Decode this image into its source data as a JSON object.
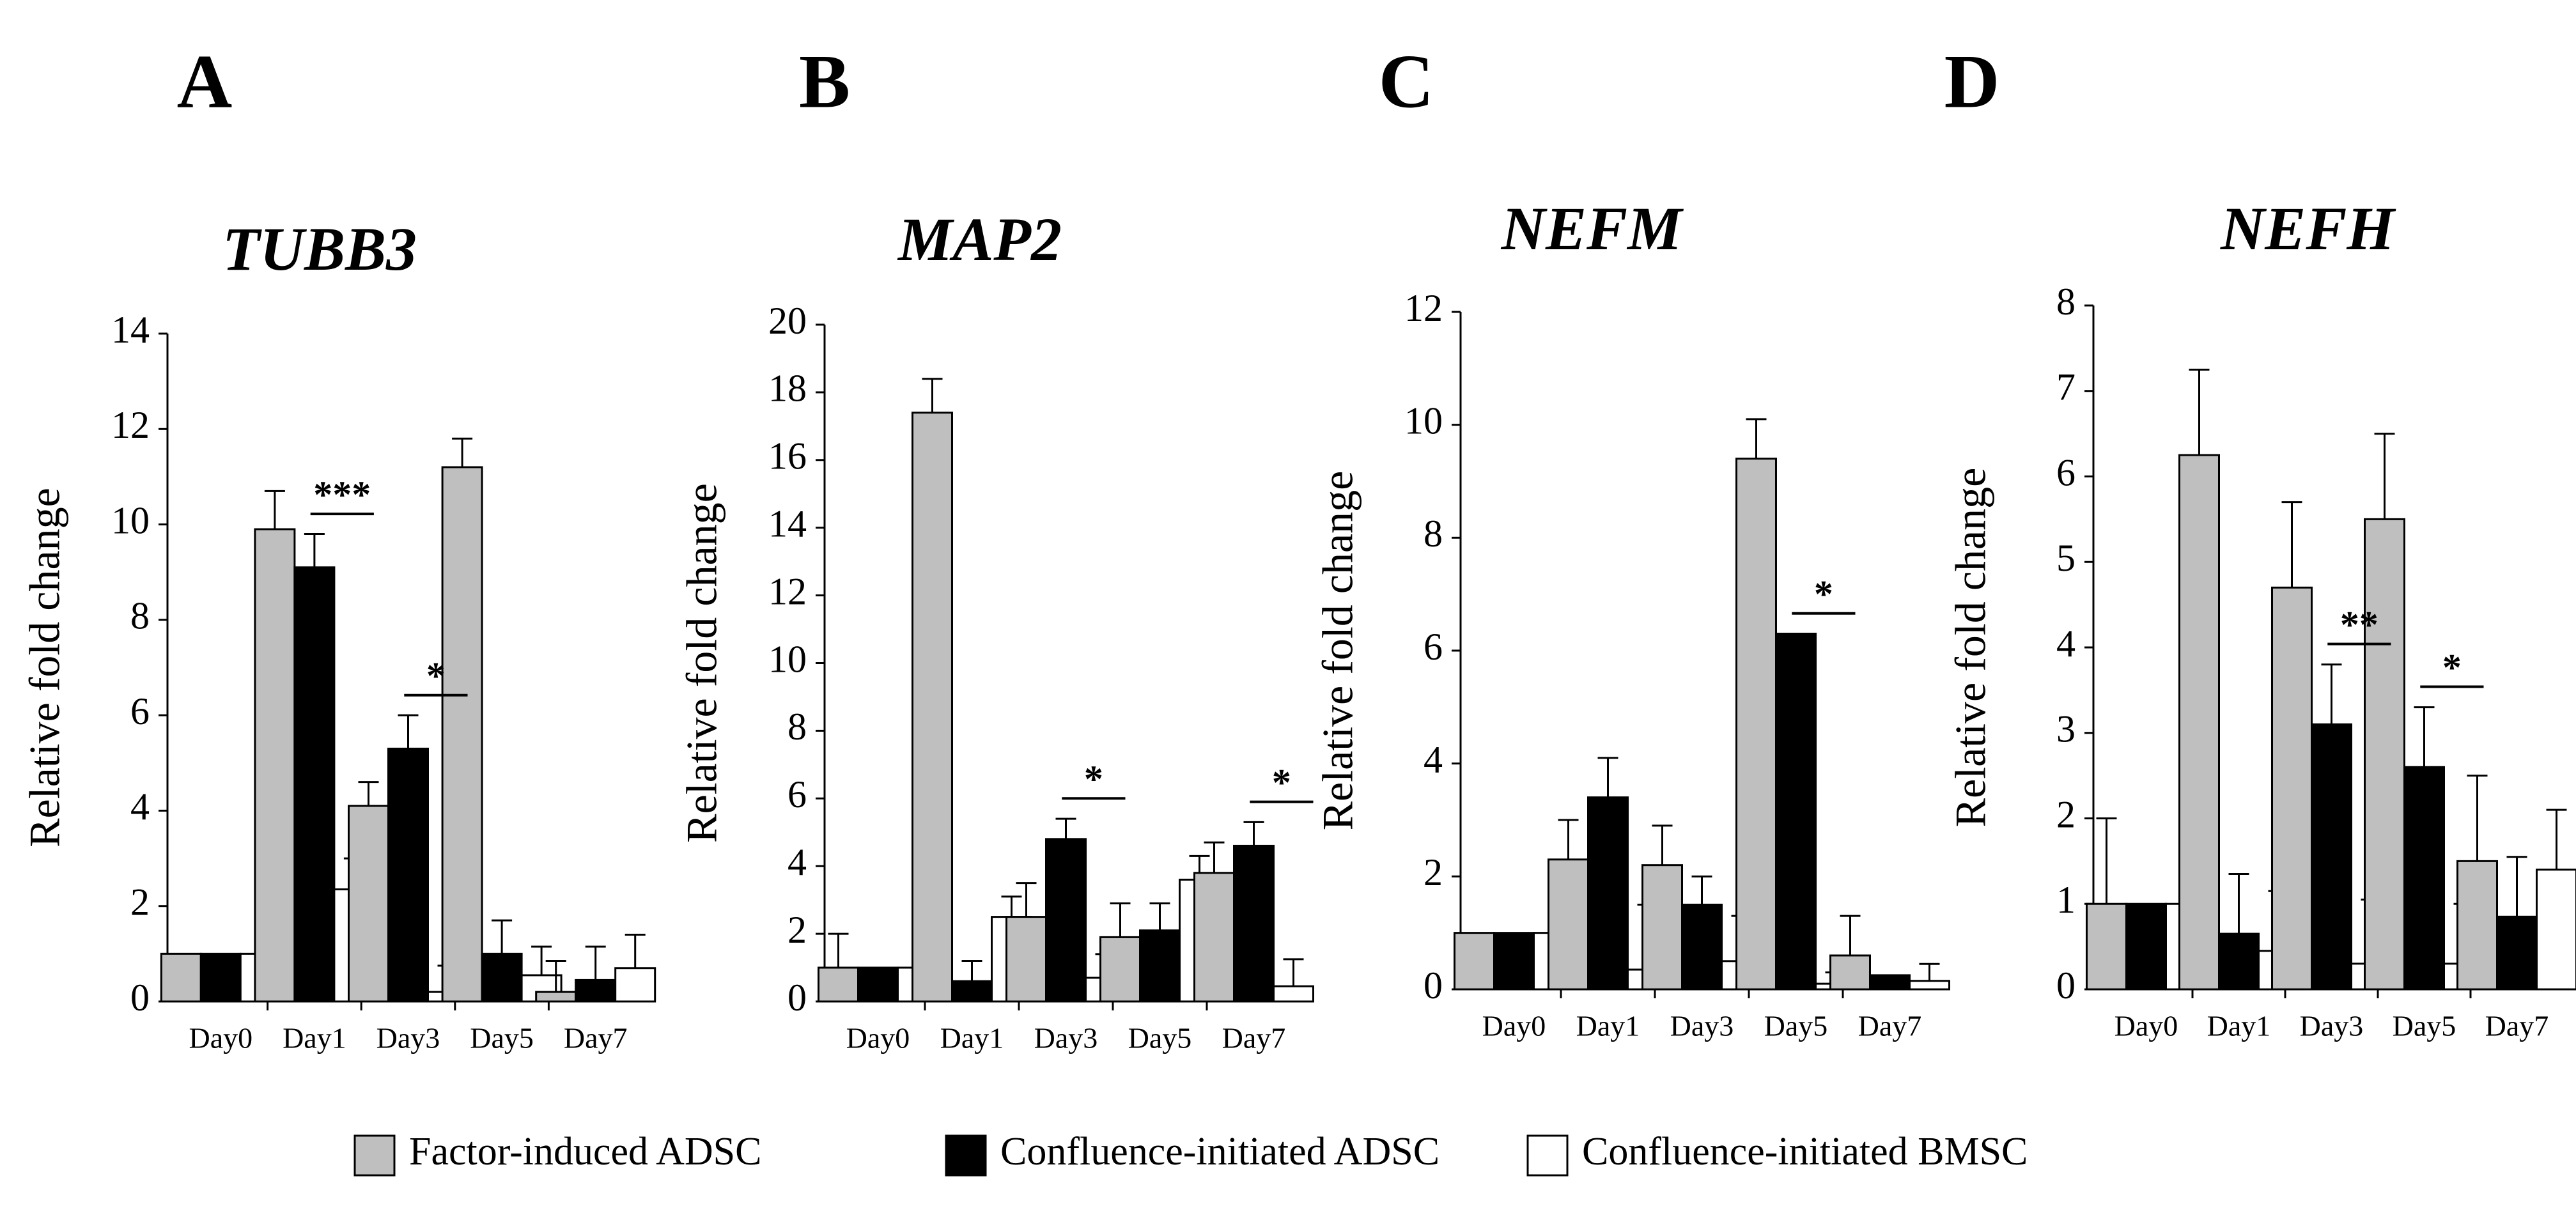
{
  "legend": {
    "items": [
      {
        "label": "Factor-induced ADSC",
        "color": "#bfbfbf"
      },
      {
        "label": "Confluence-initiated ADSC",
        "color": "#000000"
      },
      {
        "label": "Confluence-initiated BMSC",
        "color": "#ffffff"
      }
    ]
  },
  "chart_data": [
    {
      "type": "bar",
      "panel": "A",
      "title": "TUBB3",
      "ylabel": "Relative fold change",
      "xlabel": "",
      "ylim": [
        0,
        14
      ],
      "yticks": [
        0,
        2,
        4,
        6,
        8,
        10,
        12,
        14
      ],
      "categories": [
        "Day0",
        "Day1",
        "Day3",
        "Day5",
        "Day7"
      ],
      "series": [
        {
          "name": "Factor-induced ADSC",
          "values": [
            1.0,
            9.9,
            4.1,
            11.2,
            0.2
          ],
          "errors": [
            0.0,
            0.8,
            0.5,
            0.6,
            0.65
          ]
        },
        {
          "name": "Confluence-initiated ADSC",
          "values": [
            1.0,
            9.1,
            5.3,
            1.0,
            0.45
          ],
          "errors": [
            0.0,
            0.7,
            0.7,
            0.7,
            0.7
          ]
        },
        {
          "name": "Confluence-initiated BMSC",
          "values": [
            1.0,
            2.35,
            0.2,
            0.55,
            0.7
          ],
          "errors": [
            0.0,
            0.65,
            0.55,
            0.6,
            0.7
          ]
        }
      ],
      "annotations": [
        {
          "text": "***",
          "category": "Day1"
        },
        {
          "text": "*",
          "category": "Day3"
        }
      ]
    },
    {
      "type": "bar",
      "panel": "B",
      "title": "MAP2",
      "ylabel": "Relative fold change",
      "xlabel": "",
      "ylim": [
        0,
        20
      ],
      "yticks": [
        0,
        2,
        4,
        6,
        8,
        10,
        12,
        14,
        16,
        18,
        20
      ],
      "categories": [
        "Day0",
        "Day1",
        "Day3",
        "Day5",
        "Day7"
      ],
      "series": [
        {
          "name": "Factor-induced ADSC",
          "values": [
            1.0,
            17.4,
            2.5,
            1.9,
            3.8
          ],
          "errors": [
            1.0,
            1.0,
            1.0,
            1.0,
            0.9
          ]
        },
        {
          "name": "Confluence-initiated ADSC",
          "values": [
            1.0,
            0.6,
            4.8,
            2.1,
            4.6
          ],
          "errors": [
            0.0,
            0.6,
            0.6,
            0.8,
            0.7
          ]
        },
        {
          "name": "Confluence-initiated BMSC",
          "values": [
            1.0,
            2.5,
            0.7,
            3.6,
            0.45
          ],
          "errors": [
            0.0,
            0.6,
            0.7,
            0.7,
            0.8
          ]
        }
      ],
      "annotations": [
        {
          "text": "*",
          "category": "Day3"
        },
        {
          "text": "*",
          "category": "Day7"
        }
      ]
    },
    {
      "type": "bar",
      "panel": "C",
      "title": "NEFM",
      "ylabel": "Relative fold change",
      "xlabel": "",
      "ylim": [
        0,
        12
      ],
      "yticks": [
        0,
        2,
        4,
        6,
        8,
        10,
        12
      ],
      "categories": [
        "Day0",
        "Day1",
        "Day3",
        "Day5",
        "Day7"
      ],
      "series": [
        {
          "name": "Factor-induced ADSC",
          "values": [
            1.0,
            2.3,
            2.2,
            9.4,
            0.6
          ],
          "errors": [
            0.0,
            0.7,
            0.7,
            0.7,
            0.7
          ]
        },
        {
          "name": "Confluence-initiated ADSC",
          "values": [
            1.0,
            3.4,
            1.5,
            6.3,
            0.25
          ],
          "errors": [
            0.0,
            0.7,
            0.5,
            0.0,
            0.0
          ]
        },
        {
          "name": "Confluence-initiated BMSC",
          "values": [
            1.0,
            0.35,
            0.5,
            0.1,
            0.15
          ],
          "errors": [
            0.0,
            1.15,
            0.8,
            0.2,
            0.3
          ]
        }
      ],
      "annotations": [
        {
          "text": "*",
          "category": "Day5"
        }
      ]
    },
    {
      "type": "bar",
      "panel": "D",
      "title": "NEFH",
      "ylabel": "Relative fold change",
      "xlabel": "",
      "ylim": [
        0,
        8
      ],
      "yticks": [
        0,
        1,
        2,
        3,
        4,
        5,
        6,
        7,
        8
      ],
      "categories": [
        "Day0",
        "Day1",
        "Day3",
        "Day5",
        "Day7"
      ],
      "series": [
        {
          "name": "Factor-induced ADSC",
          "values": [
            1.0,
            6.25,
            4.7,
            5.5,
            1.5
          ],
          "errors": [
            1.0,
            1.0,
            1.0,
            1.0,
            1.0
          ]
        },
        {
          "name": "Confluence-initiated ADSC",
          "values": [
            1.0,
            0.65,
            3.1,
            2.6,
            0.85
          ],
          "errors": [
            0.0,
            0.7,
            0.7,
            0.7,
            0.7
          ]
        },
        {
          "name": "Confluence-initiated BMSC",
          "values": [
            1.0,
            0.45,
            0.3,
            0.3,
            1.4
          ],
          "errors": [
            0.0,
            0.7,
            0.75,
            0.7,
            0.7
          ]
        }
      ],
      "annotations": [
        {
          "text": "**",
          "category": "Day3"
        },
        {
          "text": "*",
          "category": "Day5"
        }
      ]
    }
  ]
}
